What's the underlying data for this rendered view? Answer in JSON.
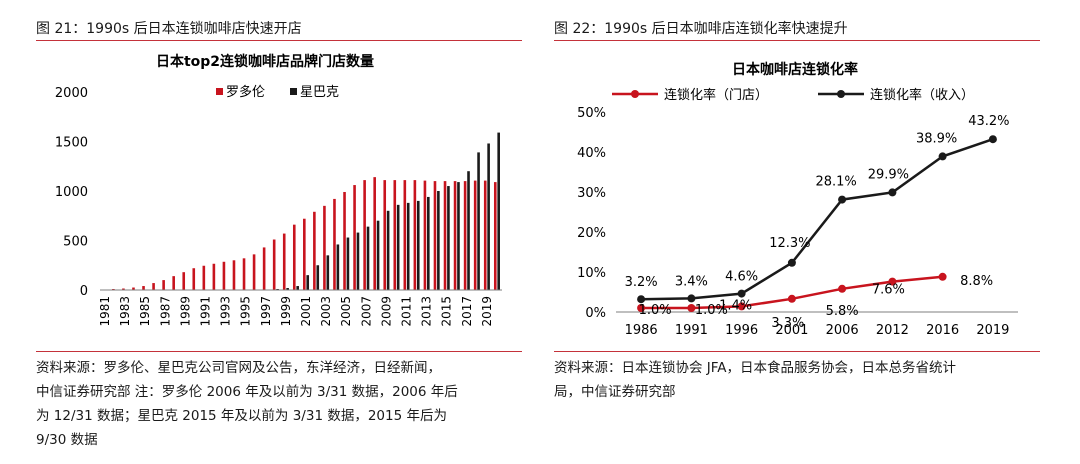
{
  "left": {
    "figure_title": "图 21：1990s 后日本连锁咖啡店快速开店",
    "source_lines": [
      "资料来源：罗多伦、星巴克公司官网及公告，东洋经济，日经新闻，",
      "中信证券研究部 注：罗多伦 2006 年及以前为 3/31 数据，2006 年后",
      "为 12/31 数据；星巴克 2015 年及以前为 3/31 数据，2015 年后为",
      "9/30 数据"
    ]
  },
  "right": {
    "figure_title": "图 22：1990s 后日本咖啡店连锁化率快速提升",
    "source_lines": [
      "资料来源：日本连锁协会 JFA，日本食品服务协会，日本总务省统计",
      "局，中信证券研究部"
    ]
  },
  "chart_data": [
    {
      "type": "bar",
      "title": "日本top2连锁咖啡店品牌门店数量",
      "xlabel": "",
      "ylabel": "",
      "ylim": [
        0,
        2000
      ],
      "yticks": [
        "0",
        "500",
        "1000",
        "1500",
        "2000"
      ],
      "categories": [
        "1981",
        "1982",
        "1983",
        "1984",
        "1985",
        "1986",
        "1987",
        "1988",
        "1989",
        "1990",
        "1991",
        "1992",
        "1993",
        "1994",
        "1995",
        "1996",
        "1997",
        "1998",
        "1999",
        "2000",
        "2001",
        "2002",
        "2003",
        "2004",
        "2005",
        "2006",
        "2007",
        "2008",
        "2009",
        "2010",
        "2011",
        "2012",
        "2013",
        "2014",
        "2015",
        "2016",
        "2017",
        "2018",
        "2019",
        "2020"
      ],
      "xtick_labels": [
        "1981",
        "1983",
        "1985",
        "1987",
        "1989",
        "1991",
        "1993",
        "1995",
        "1997",
        "1999",
        "2001",
        "2003",
        "2005",
        "2007",
        "2009",
        "2011",
        "2013",
        "2015",
        "2017",
        "2019"
      ],
      "series": [
        {
          "name": "罗多伦",
          "color": "#c8141e",
          "values": [
            5,
            10,
            15,
            25,
            40,
            70,
            100,
            140,
            180,
            220,
            245,
            265,
            285,
            300,
            320,
            360,
            430,
            510,
            570,
            660,
            720,
            790,
            850,
            920,
            990,
            1060,
            1110,
            1140,
            1110,
            1110,
            1110,
            1110,
            1105,
            1100,
            1100,
            1100,
            1100,
            1105,
            1105,
            1090
          ]
        },
        {
          "name": "星巴克",
          "color": "#1a1a1a",
          "values": [
            0,
            0,
            0,
            0,
            0,
            0,
            0,
            0,
            0,
            0,
            0,
            0,
            0,
            0,
            0,
            0,
            1,
            10,
            20,
            40,
            150,
            250,
            350,
            460,
            530,
            580,
            640,
            700,
            800,
            860,
            880,
            900,
            940,
            1000,
            1050,
            1090,
            1200,
            1390,
            1480,
            1590
          ]
        }
      ],
      "legend": "top-center"
    },
    {
      "type": "line",
      "title": "日本咖啡店连锁化率",
      "xlabel": "",
      "ylabel": "",
      "ylim": [
        0,
        50
      ],
      "yticks": [
        "0%",
        "10%",
        "20%",
        "30%",
        "40%",
        "50%"
      ],
      "categories": [
        "1986",
        "1991",
        "1996",
        "2001",
        "2006",
        "2012",
        "2016",
        "2019"
      ],
      "series": [
        {
          "name": "连锁化率（门店）",
          "color": "#c8141e",
          "values": [
            1.0,
            1.0,
            1.4,
            3.3,
            5.8,
            7.6,
            8.8,
            null
          ],
          "labels": [
            "1.0%",
            "1.0%",
            "1.4%",
            "3.3%",
            "5.8%",
            "7.6%",
            "8.8%",
            ""
          ]
        },
        {
          "name": "连锁化率（收入）",
          "color": "#1a1a1a",
          "values": [
            3.2,
            3.4,
            4.6,
            12.3,
            28.1,
            29.9,
            38.9,
            43.2
          ],
          "labels": [
            "3.2%",
            "3.4%",
            "4.6%",
            "12.3%",
            "28.1%",
            "29.9%",
            "38.9%",
            "43.2%"
          ]
        }
      ],
      "legend": "top"
    }
  ]
}
